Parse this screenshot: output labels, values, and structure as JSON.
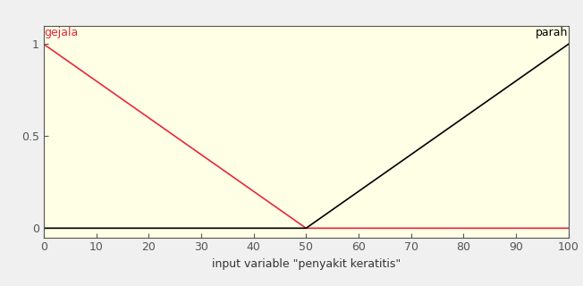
{
  "chart_data": {
    "type": "line",
    "x_label": "input variable \"penyakit keratitis\"",
    "series": [
      {
        "name": "gejala",
        "color": "#e8283c",
        "x": [
          0,
          50,
          100
        ],
        "values": [
          1,
          0,
          0
        ]
      },
      {
        "name": "parah",
        "color": "#000000",
        "x": [
          0,
          50,
          100
        ],
        "values": [
          0,
          0,
          1
        ]
      }
    ],
    "xlim": [
      0,
      100
    ],
    "xticks": [
      0,
      10,
      20,
      30,
      40,
      50,
      60,
      70,
      80,
      90,
      100
    ],
    "ylim": [
      -0.05,
      1.1
    ],
    "yticks": [
      0,
      0.5,
      1
    ],
    "grid": false
  }
}
